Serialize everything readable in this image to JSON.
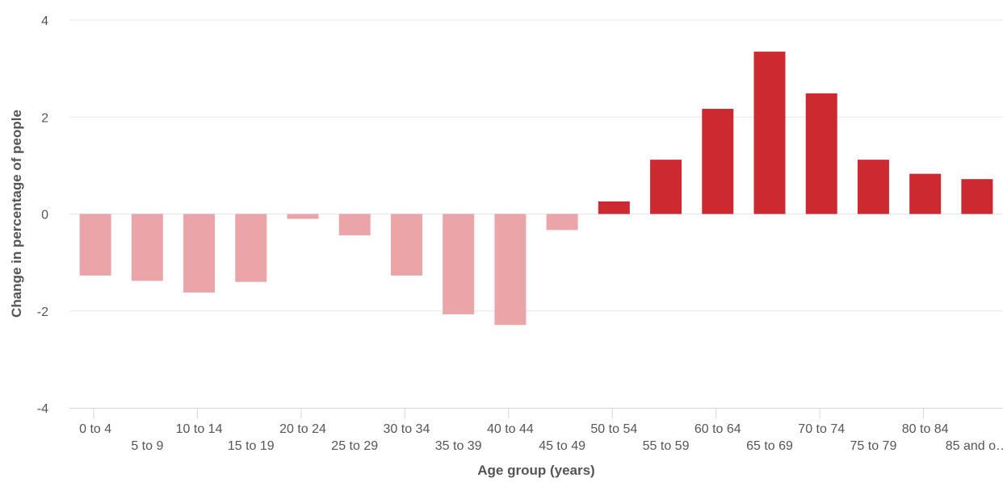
{
  "chart_data": {
    "type": "bar",
    "xlabel": "Age group (years)",
    "ylabel": "Change in percentage of people",
    "ylim": [
      -4,
      4
    ],
    "yticks": [
      -4,
      -2,
      0,
      2,
      4
    ],
    "grid": true,
    "categories": [
      "0 to 4",
      "5 to 9",
      "10 to 14",
      "15 to 19",
      "20 to 24",
      "25 to 29",
      "30 to 34",
      "35 to 39",
      "40 to 44",
      "45 to 49",
      "50 to 54",
      "55 to 59",
      "60 to 64",
      "65 to 69",
      "70 to 74",
      "75 to 79",
      "80 to 84",
      "85 and o…"
    ],
    "values": [
      -1.27,
      -1.38,
      -1.62,
      -1.4,
      -0.1,
      -0.44,
      -1.27,
      -2.07,
      -2.29,
      -0.33,
      0.26,
      1.12,
      2.17,
      3.35,
      2.49,
      1.12,
      0.83,
      0.72
    ],
    "colors": {
      "negative": "#eba4a7",
      "positive": "#cc2a30"
    }
  }
}
